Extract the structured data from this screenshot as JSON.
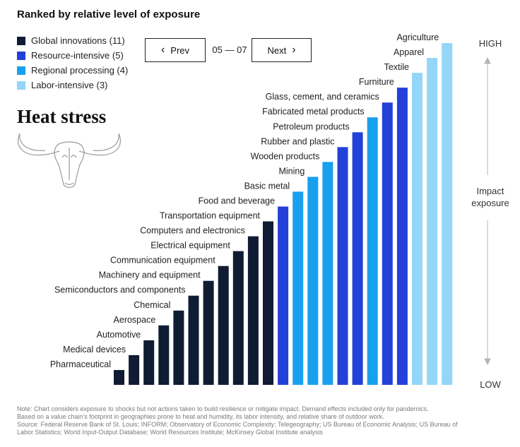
{
  "header": {
    "subtitle": "Ranked by relative level of exposure"
  },
  "legend": [
    {
      "label": "Global innovations (11)",
      "color": "#0f1c33"
    },
    {
      "label": "Resource-intensive (5)",
      "color": "#2340d8"
    },
    {
      "label": "Regional processing (4)",
      "color": "#18a0ef"
    },
    {
      "label": "Labor-intensive (3)",
      "color": "#93d6f7"
    }
  ],
  "pager": {
    "prev_label": "Prev",
    "next_label": "Next",
    "position": "05 — 07"
  },
  "heading": {
    "title": "Heat stress"
  },
  "axis": {
    "high": "HIGH",
    "low": "LOW",
    "mid": "Impact exposure"
  },
  "chart_data": {
    "type": "bar",
    "categories": [
      "Pharmaceutical",
      "Medical devices",
      "Automotive",
      "Aerospace",
      "Chemical",
      "Semiconductors and components",
      "Machinery and equipment",
      "Communication equipment",
      "Electrical equipment",
      "Computers and electronics",
      "Transportation equipment",
      "Food and beverage",
      "Basic metal",
      "Mining",
      "Wooden products",
      "Rubber and plastic",
      "Petroleum products",
      "Fabricated metal products",
      "Glass, cement, and ceramics",
      "Furniture",
      "Textile",
      "Apparel",
      "Agriculture"
    ],
    "values": [
      1,
      2,
      3,
      4,
      5,
      6,
      7,
      8,
      9,
      10,
      11,
      12,
      13,
      14,
      15,
      16,
      17,
      18,
      19,
      20,
      21,
      22,
      23
    ],
    "groups": [
      "Global innovations",
      "Global innovations",
      "Global innovations",
      "Global innovations",
      "Global innovations",
      "Global innovations",
      "Global innovations",
      "Global innovations",
      "Global innovations",
      "Global innovations",
      "Global innovations",
      "Resource-intensive",
      "Regional processing",
      "Regional processing",
      "Regional processing",
      "Resource-intensive",
      "Resource-intensive",
      "Regional processing",
      "Resource-intensive",
      "Resource-intensive",
      "Labor-intensive",
      "Labor-intensive",
      "Labor-intensive"
    ],
    "group_colors": {
      "Global innovations": "#0f1c33",
      "Resource-intensive": "#2340d8",
      "Regional processing": "#18a0ef",
      "Labor-intensive": "#93d6f7"
    },
    "title": "Heat stress",
    "ylabel": "Impact exposure",
    "ylim": [
      0,
      23
    ]
  },
  "footnote": {
    "line1": "Note: Chart considers exposure to shocks but not actions taken to build resilience or mitigate impact. Demand effects included only for pandemics.",
    "line2": "Based on a value chain's footprint in geographies prone to heat and humidity, its labor intensity, and relative share of outdoor work.",
    "line3": "Source: Federal Reserve Bank of St. Louis; INFORM; Observatory of Economic Complexity; Telegeography; US Bureau of Economic Analysis; US Bureau of",
    "line4": "Labor Statistics; World Input-Output Database; World Resources Institute; McKinsey Global Institute analysis"
  }
}
